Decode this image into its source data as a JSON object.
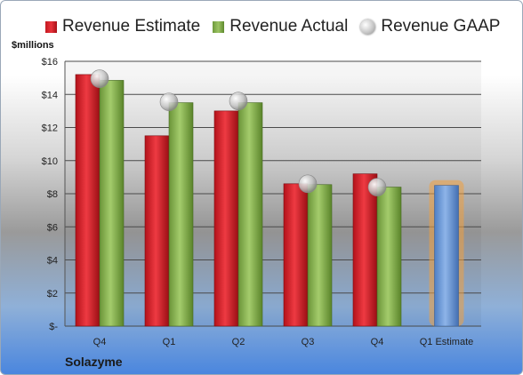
{
  "legend": {
    "estimate": "Revenue Estimate",
    "actual": "Revenue Actual",
    "gaap": "Revenue GAAP"
  },
  "unit_label": "$millions",
  "company": "Solazyme",
  "colors": {
    "estimate": "#d42028",
    "actual": "#8db858",
    "gaap": "#c8c8c8",
    "forecast": "#6d97d4",
    "forecast_glow": "#f0a040"
  },
  "chart_data": {
    "type": "bar",
    "categories": [
      "Q4",
      "Q1",
      "Q2",
      "Q3",
      "Q4",
      "Q1 Estimate"
    ],
    "series": [
      {
        "name": "Revenue Estimate",
        "values": [
          15.2,
          11.5,
          13.0,
          8.6,
          9.2,
          null
        ]
      },
      {
        "name": "Revenue Actual",
        "values": [
          14.85,
          13.5,
          13.5,
          8.55,
          8.4,
          8.5
        ]
      },
      {
        "name": "Revenue GAAP",
        "type": "scatter",
        "values": [
          14.95,
          13.55,
          13.6,
          8.6,
          8.4,
          null
        ]
      }
    ],
    "ylabel": "$millions",
    "ylim": [
      0,
      16
    ],
    "y_ticks": [
      "$-",
      "$2",
      "$4",
      "$6",
      "$8",
      "$10",
      "$12",
      "$14",
      "$16"
    ],
    "grid": true,
    "legend_position": "top"
  }
}
